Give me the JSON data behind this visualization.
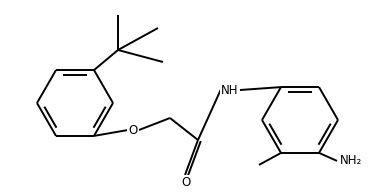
{
  "background_color": "#ffffff",
  "line_color": "#000000",
  "line_width": 1.4,
  "font_size_label": 8.5,
  "figsize": [
    3.74,
    1.94
  ],
  "dpi": 100,
  "xlim": [
    0,
    374
  ],
  "ylim": [
    0,
    194
  ]
}
